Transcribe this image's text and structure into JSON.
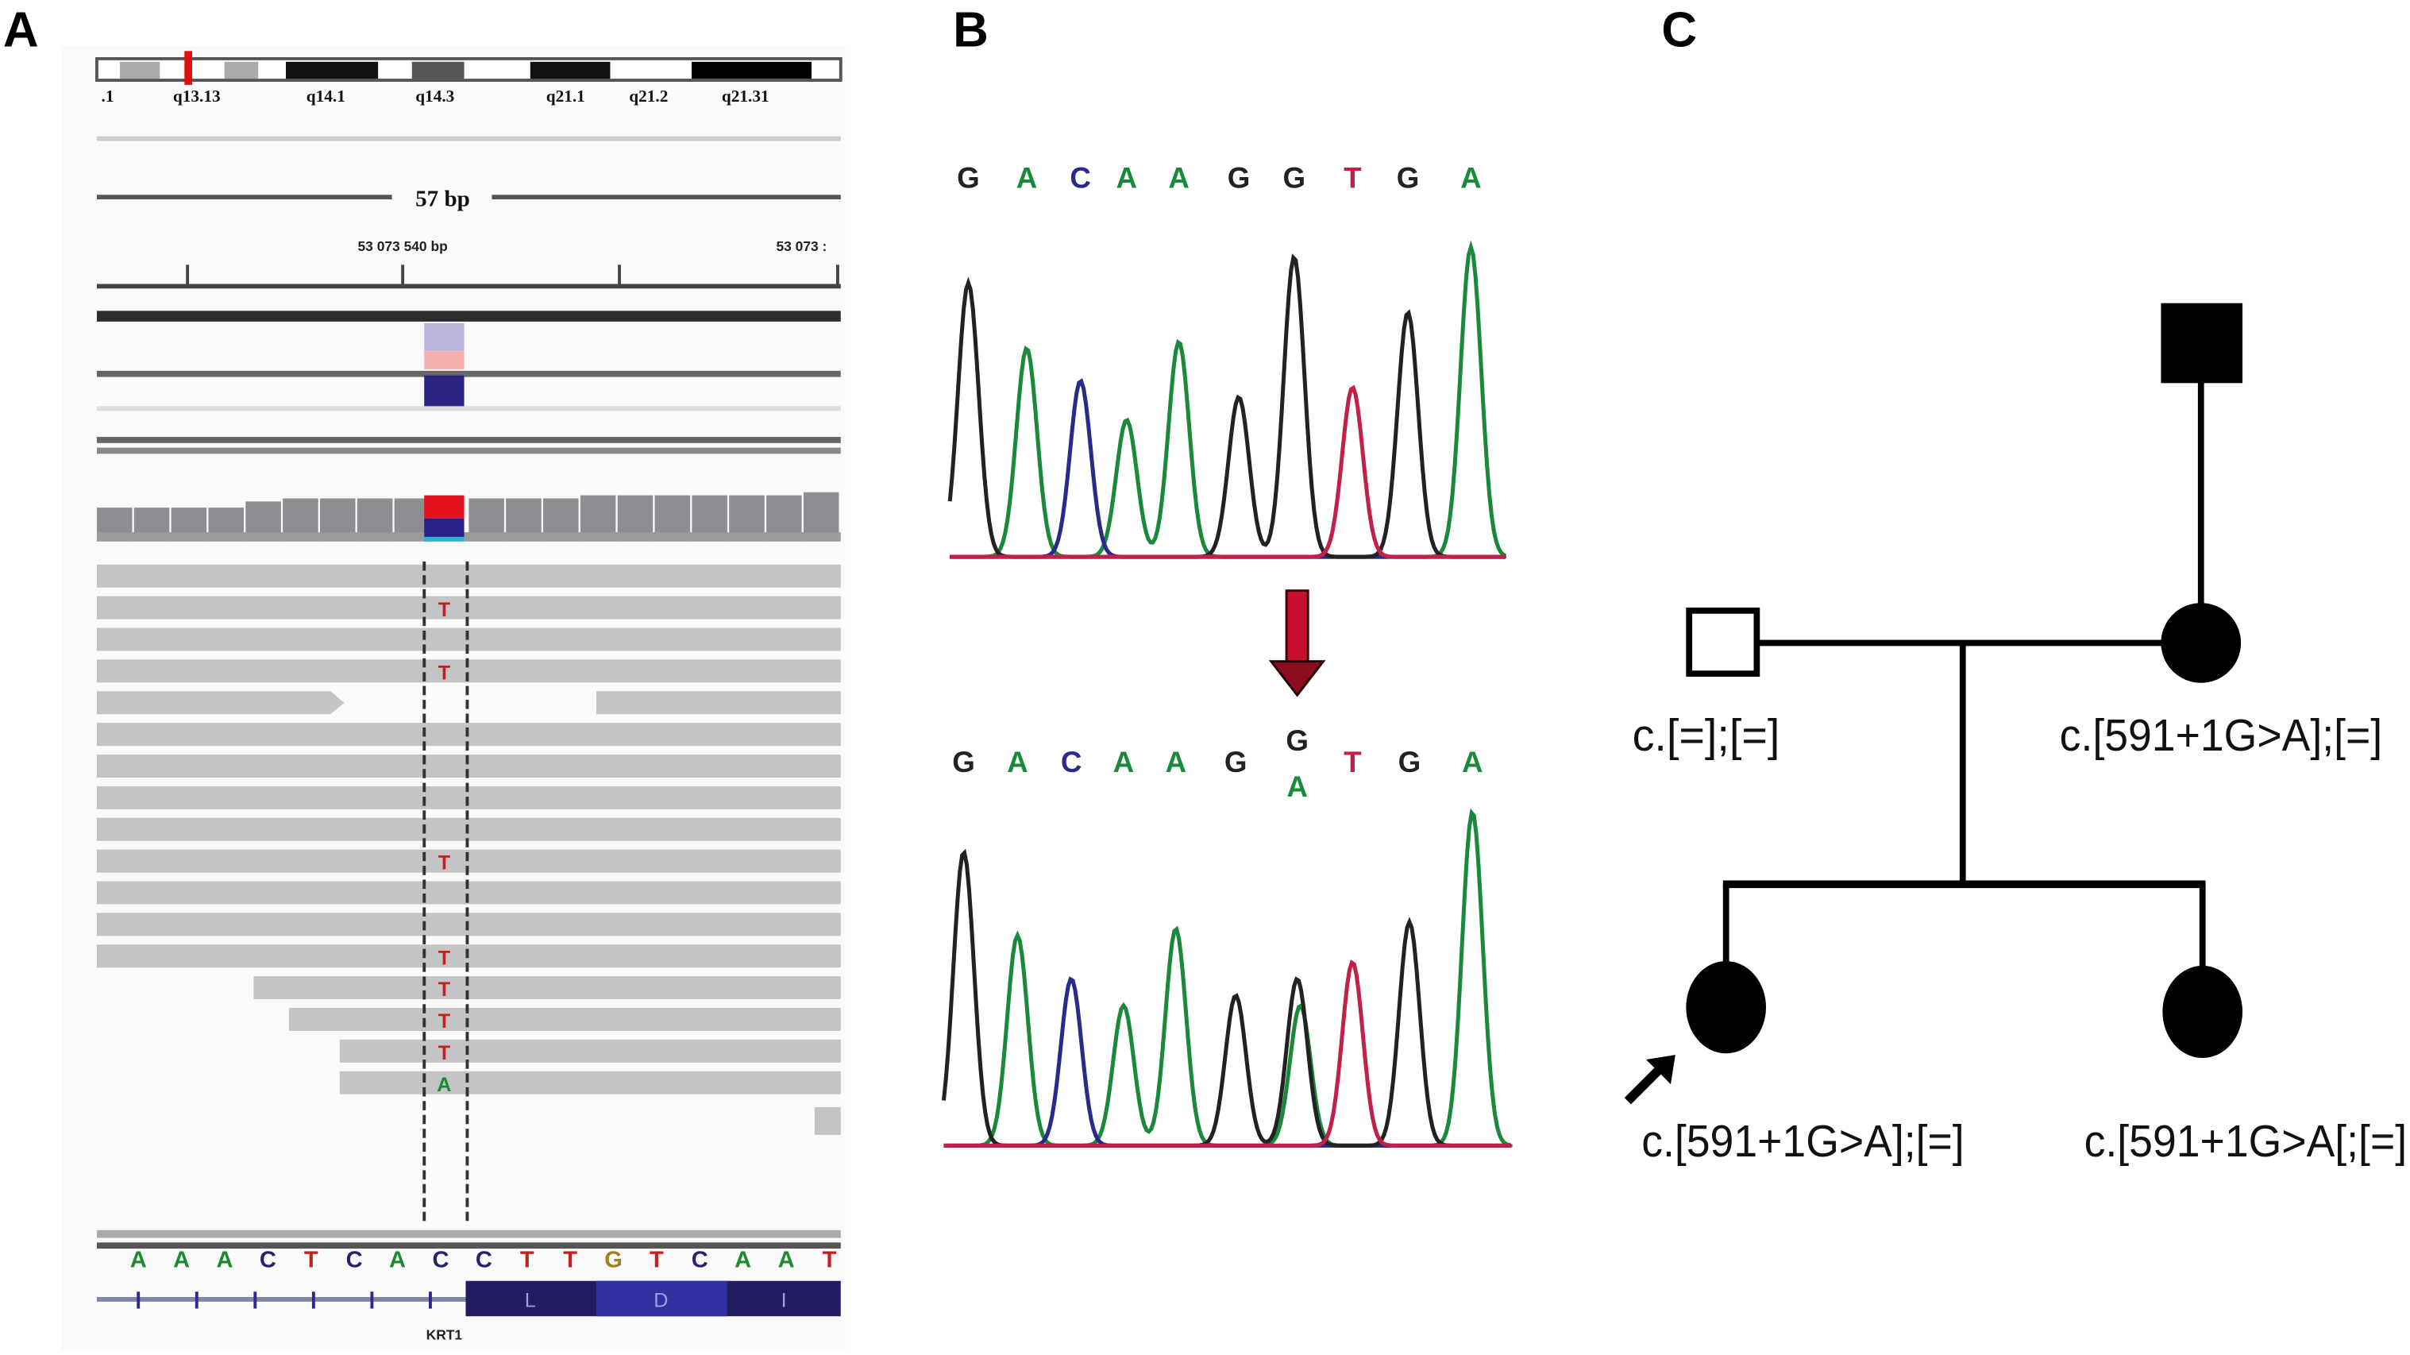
{
  "panels": {
    "a": "A",
    "b": "B",
    "c": "C"
  },
  "igv": {
    "cytobands": [
      ".1",
      "q13.13",
      "q14.1",
      "q14.3",
      "q21.1",
      "q21.2",
      "q21.31"
    ],
    "scale_label": "57 bp",
    "ruler_labels": [
      "53 073 540 bp",
      "53 073 :"
    ],
    "reads": [
      {
        "call": ""
      },
      {
        "call": "T"
      },
      {
        "call": ""
      },
      {
        "call": "T"
      },
      {
        "call": "",
        "gap": true
      },
      {
        "call": ""
      },
      {
        "call": ""
      },
      {
        "call": ""
      },
      {
        "call": ""
      },
      {
        "call": "T"
      },
      {
        "call": ""
      },
      {
        "call": ""
      },
      {
        "call": "T"
      },
      {
        "call": "T"
      },
      {
        "call": "T"
      },
      {
        "call": "T"
      },
      {
        "call": "A"
      }
    ],
    "reference_sequence": [
      "A",
      "A",
      "A",
      "C",
      "T",
      "C",
      "A",
      "C",
      "C",
      "T",
      "T",
      "G",
      "T",
      "C",
      "A",
      "A",
      "T"
    ],
    "amino_acids": [
      "L",
      "D",
      "I"
    ],
    "gene": "KRT1"
  },
  "base_colors": {
    "A": "#1a8a3a",
    "C": "#2a2a8a",
    "G": "#222222",
    "T": "#c0204a"
  },
  "igv_base_colors": {
    "A": "#1e8a2e",
    "C": "#23236e",
    "G": "#a08020",
    "T": "#c02020"
  },
  "chromatograms": [
    {
      "calls": [
        "G",
        "A",
        "C",
        "A",
        "A",
        "G",
        "G",
        "T",
        "G",
        "A"
      ],
      "peaks": [
        0.84,
        0.64,
        0.54,
        0.42,
        0.66,
        0.49,
        0.92,
        0.52,
        0.75,
        0.95
      ]
    },
    {
      "calls": [
        "G",
        "A",
        "C",
        "A",
        "A",
        "G",
        "G/A",
        "T",
        "G",
        "A"
      ],
      "peaks": [
        0.88,
        0.63,
        0.5,
        0.42,
        0.65,
        0.45,
        0.5,
        0.55,
        0.67,
        1.0
      ],
      "het_second_peak": 0.42
    }
  ],
  "pedigree": {
    "father_of_mother": {
      "sex": "male",
      "affected": true
    },
    "father": {
      "sex": "male",
      "affected": false,
      "genotype": "c.[=];[=]"
    },
    "mother": {
      "sex": "female",
      "affected": true,
      "genotype": "c.[591+1G>A];[=]"
    },
    "proband": {
      "sex": "female",
      "affected": true,
      "genotype": "c.[591+1G>A];[=]"
    },
    "sister": {
      "sex": "female",
      "affected": true,
      "genotype": "c.[591+1G>A[;[=]"
    }
  }
}
